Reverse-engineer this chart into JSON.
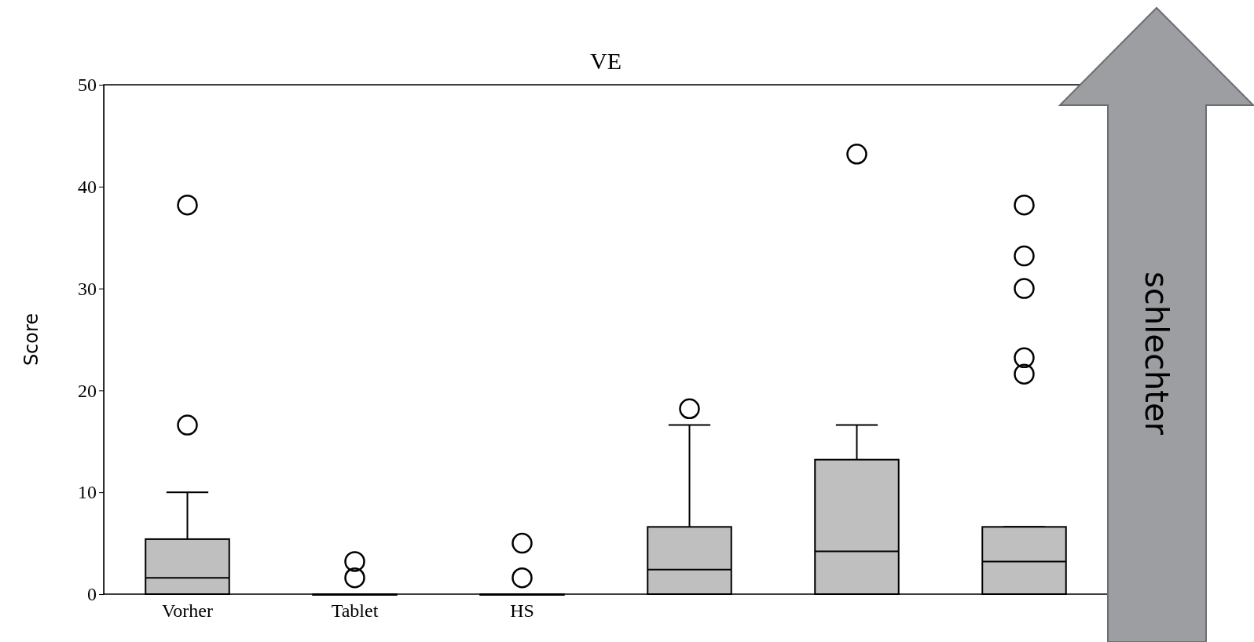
{
  "chart_data": {
    "type": "box",
    "title": "VE",
    "ylabel": "Score",
    "categories": [
      "Vorher",
      "Tablet",
      "HS",
      null,
      null,
      null
    ],
    "ylim": [
      0,
      50
    ],
    "yticks": [
      0,
      10,
      20,
      30,
      40,
      50
    ],
    "grid": false,
    "color": "#bfbfbf",
    "boxes": [
      {
        "low": 0,
        "q1": 0,
        "median": 1.6,
        "q3": 5.4,
        "high": 10,
        "outliers": [
          16.6,
          38.2
        ]
      },
      {
        "low": 0,
        "q1": 0,
        "median": 0,
        "q3": 0,
        "high": 0,
        "outliers": [
          1.6,
          3.2
        ]
      },
      {
        "low": 0,
        "q1": 0,
        "median": 0,
        "q3": 0,
        "high": 0,
        "outliers": [
          1.6,
          5.0
        ]
      },
      {
        "low": 0,
        "q1": 0,
        "median": 2.4,
        "q3": 6.6,
        "high": 16.6,
        "outliers": [
          18.2
        ]
      },
      {
        "low": 0,
        "q1": 0,
        "median": 4.2,
        "q3": 13.2,
        "high": 16.6,
        "outliers": [
          43.2
        ]
      },
      {
        "low": 0,
        "q1": 0,
        "median": 3.2,
        "q3": 6.6,
        "high": 6.6,
        "outliers": [
          21.6,
          23.2,
          30,
          33.2,
          38.2
        ]
      }
    ],
    "annotations": [
      "schlechter"
    ]
  }
}
